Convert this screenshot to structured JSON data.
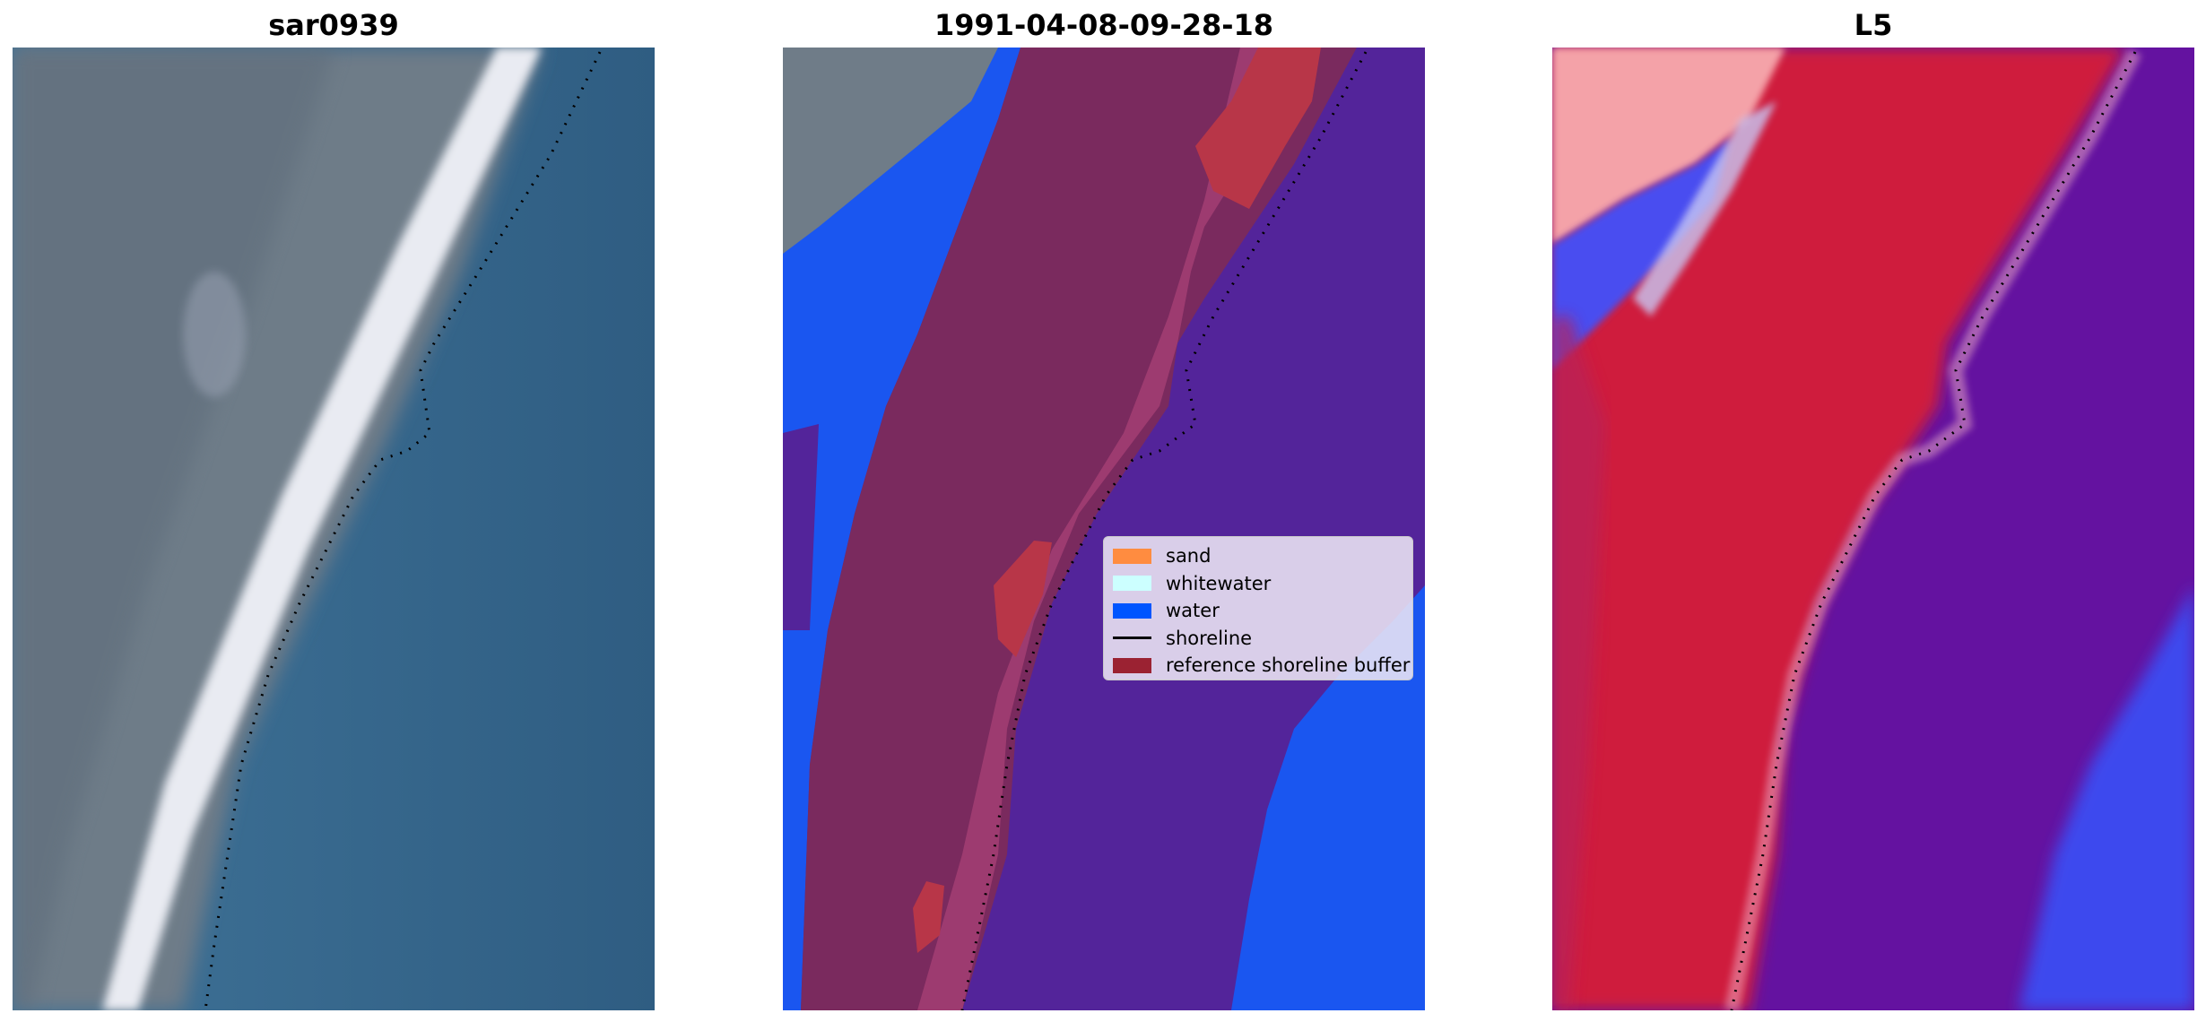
{
  "panels": [
    {
      "title": "sar0939"
    },
    {
      "title": "1991-04-08-09-28-18"
    },
    {
      "title": "L5"
    }
  ],
  "legend": {
    "items": [
      {
        "label": "sand",
        "color": "#ff8c40",
        "kind": "patch"
      },
      {
        "label": "whitewater",
        "color": "#ccffff",
        "kind": "patch"
      },
      {
        "label": "water",
        "color": "#0055ff",
        "kind": "patch"
      },
      {
        "label": "shoreline",
        "color": "#000000",
        "kind": "line"
      },
      {
        "label": "reference shoreline buffer",
        "color": "#9b2232",
        "kind": "patch"
      }
    ]
  },
  "colors": {
    "sea": "#3d6f93",
    "land_gray": "#707c88",
    "beach_white": "#e8eaf0",
    "land_maroon": "#7c285c",
    "water_purple": "#53249a",
    "buffer_red": "#b83648",
    "rgb_red": "#d01a3c",
    "rgb_purple": "#6412a0",
    "rgb_blue": "#3c46f0",
    "rgb_pink": "#f5a0a6"
  }
}
